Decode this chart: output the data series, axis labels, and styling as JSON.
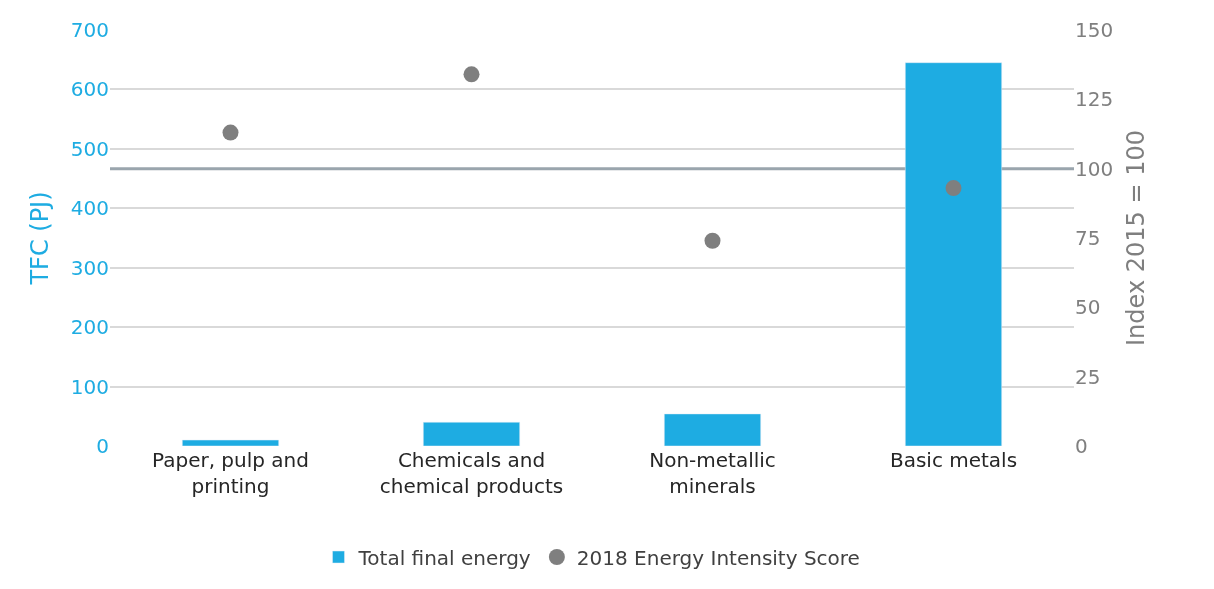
{
  "chart_data": {
    "type": "bar",
    "categories": [
      "Paper, pulp and printing",
      "Chemicals and chemical products",
      "Non-metallic minerals",
      "Basic metals"
    ],
    "ylabel": "TFC (PJ)",
    "y2label": "Index 2015 = 100",
    "ylim": [
      0,
      700
    ],
    "yticks": [
      0,
      100,
      200,
      300,
      400,
      500,
      600,
      700
    ],
    "y2lim": [
      0,
      150
    ],
    "y2ticks": [
      0,
      25,
      50,
      75,
      100,
      125,
      150
    ],
    "series": [
      {
        "name": "Total final energy",
        "color": "#1eace2",
        "values": [
          10,
          40,
          54,
          645
        ]
      },
      {
        "name": "2018 Energy Intensity Score",
        "type": "scatter",
        "axis": "y2",
        "color": "#7f7f7f",
        "marker": "circle",
        "values": [
          113,
          134,
          74,
          93
        ]
      }
    ],
    "ref_lines": [
      {
        "axis": "y2",
        "value": 100,
        "color": "#9aa5ad"
      }
    ],
    "grid": "y",
    "legend": "bottom"
  }
}
